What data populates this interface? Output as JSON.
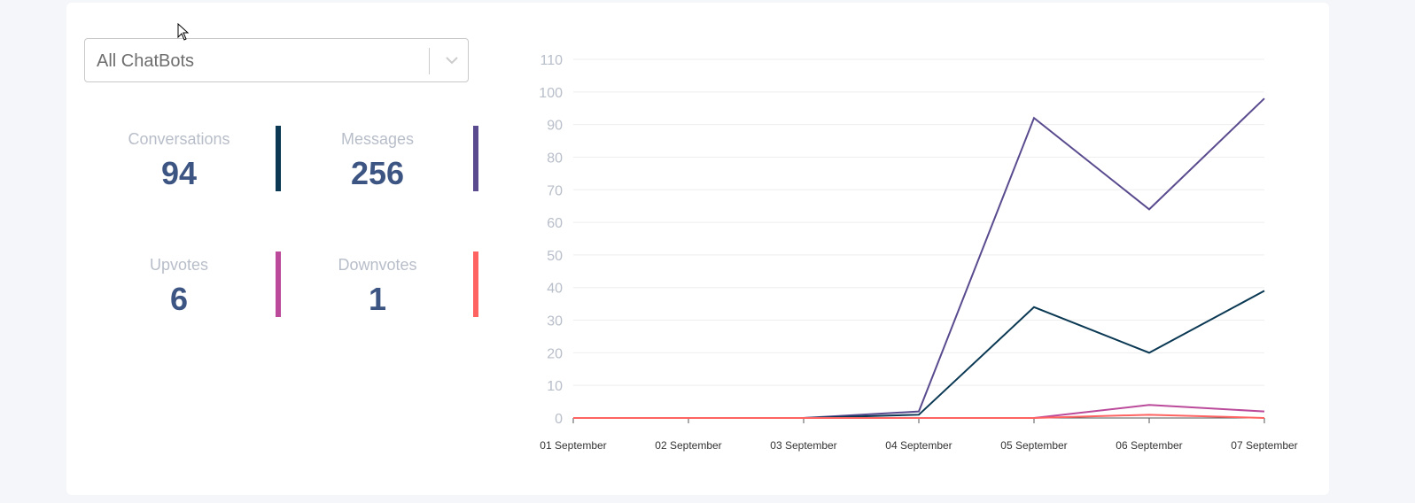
{
  "filter": {
    "selected": "All ChatBots"
  },
  "stats": [
    {
      "label": "Conversations",
      "value": "94",
      "color": "#0b3954"
    },
    {
      "label": "Messages",
      "value": "256",
      "color": "#5a4b8f"
    },
    {
      "label": "Upvotes",
      "value": "6",
      "color": "#bb4a9b"
    },
    {
      "label": "Downvotes",
      "value": "1",
      "color": "#ff6361"
    }
  ],
  "chart_data": {
    "type": "line",
    "x": [
      "01 September",
      "02 September",
      "03 September",
      "04 September",
      "05 September",
      "06 September",
      "07 September"
    ],
    "ylim": [
      0,
      110
    ],
    "yticks": [
      0,
      10,
      20,
      30,
      40,
      50,
      60,
      70,
      80,
      90,
      100,
      110
    ],
    "grid": true,
    "series": [
      {
        "color": "#5a4b8f",
        "values": [
          0,
          0,
          0,
          2,
          92,
          64,
          98
        ]
      },
      {
        "color": "#0b3954",
        "values": [
          0,
          0,
          0,
          1,
          34,
          20,
          39
        ]
      },
      {
        "color": "#bb4a9b",
        "values": [
          0,
          0,
          0,
          0,
          0,
          4,
          2
        ]
      },
      {
        "color": "#ff6361",
        "values": [
          0,
          0,
          0,
          0,
          0,
          1,
          0
        ]
      }
    ]
  }
}
